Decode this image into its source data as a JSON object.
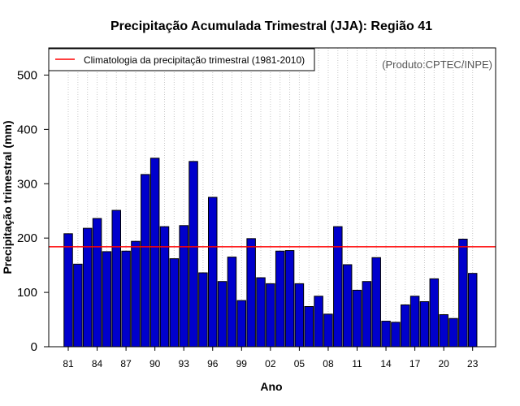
{
  "chart_data": {
    "type": "bar",
    "title": "Precipitação Acumulada Trimestral (JJA): Região 41",
    "xlabel": "Ano",
    "ylabel": "Precipitação trimestral (mm)",
    "ylim": [
      0,
      550
    ],
    "yticks": [
      0,
      100,
      200,
      300,
      400,
      500
    ],
    "years": [
      1981,
      1982,
      1983,
      1984,
      1985,
      1986,
      1987,
      1988,
      1989,
      1990,
      1991,
      1992,
      1993,
      1994,
      1995,
      1996,
      1997,
      1998,
      1999,
      2000,
      2001,
      2002,
      2003,
      2004,
      2005,
      2006,
      2007,
      2008,
      2009,
      2010,
      2011,
      2012,
      2013,
      2014,
      2015,
      2016,
      2017,
      2018,
      2019,
      2020,
      2021,
      2022,
      2023
    ],
    "tick_labels": [
      "81",
      "84",
      "87",
      "90",
      "93",
      "96",
      "99",
      "02",
      "05",
      "08",
      "11",
      "14",
      "17",
      "20",
      "23"
    ],
    "tick_every": 3,
    "values": [
      208,
      152,
      218,
      236,
      175,
      251,
      176,
      194,
      317,
      347,
      221,
      162,
      223,
      341,
      136,
      275,
      120,
      165,
      85,
      199,
      127,
      116,
      176,
      177,
      116,
      74,
      93,
      60,
      221,
      151,
      104,
      120,
      164,
      47,
      45,
      77,
      93,
      83,
      125,
      59,
      52,
      198,
      135
    ],
    "bar_color": "#0000CC",
    "climatology": {
      "value": 184,
      "label": "Climatologia da precipitação trimestral (1981-2010)",
      "color": "#FF0000"
    },
    "legend_position": "top-left",
    "grid": "vertical dotted",
    "annotation": "(Produto:CPTEC/INPE)"
  }
}
